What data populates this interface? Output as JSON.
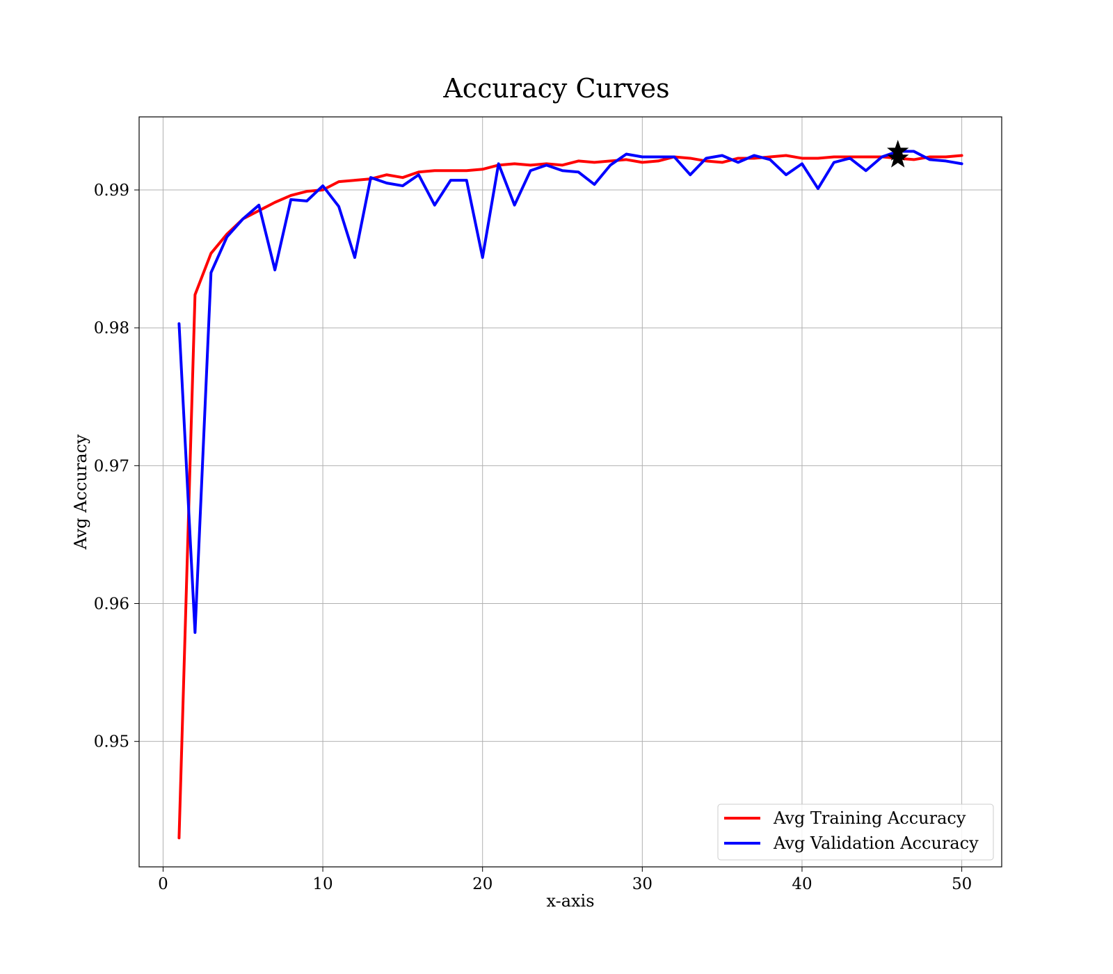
{
  "chart_data": {
    "type": "line",
    "title": "Accuracy Curves",
    "xlabel": "x-axis",
    "ylabel": "Avg Accuracy",
    "xlim": [
      -1.5,
      52.5
    ],
    "ylim": [
      0.9409,
      0.9953
    ],
    "x_ticks": [
      0,
      10,
      20,
      30,
      40,
      50
    ],
    "y_ticks": [
      0.95,
      0.96,
      0.97,
      0.98,
      0.99
    ],
    "x_tick_labels": [
      "0",
      "10",
      "20",
      "30",
      "40",
      "50"
    ],
    "y_tick_labels": [
      "0.95",
      "0.96",
      "0.97",
      "0.98",
      "0.99"
    ],
    "grid": true,
    "legend_position": "lower-right",
    "x": [
      1,
      2,
      3,
      4,
      5,
      6,
      7,
      8,
      9,
      10,
      11,
      12,
      13,
      14,
      15,
      16,
      17,
      18,
      19,
      20,
      21,
      22,
      23,
      24,
      25,
      26,
      27,
      28,
      29,
      30,
      31,
      32,
      33,
      34,
      35,
      36,
      37,
      38,
      39,
      40,
      41,
      42,
      43,
      44,
      45,
      46,
      47,
      48,
      49,
      50
    ],
    "series": [
      {
        "name": "Avg Training Accuracy",
        "color": "#ff0000",
        "values": [
          0.943,
          0.9824,
          0.9854,
          0.9868,
          0.9879,
          0.9885,
          0.9891,
          0.9896,
          0.9899,
          0.99,
          0.9906,
          0.9907,
          0.9908,
          0.9911,
          0.9909,
          0.9913,
          0.9914,
          0.9914,
          0.9914,
          0.9915,
          0.9918,
          0.9919,
          0.9918,
          0.9919,
          0.9918,
          0.9921,
          0.992,
          0.9921,
          0.9922,
          0.992,
          0.9921,
          0.9924,
          0.9923,
          0.9921,
          0.992,
          0.9923,
          0.9923,
          0.9924,
          0.9925,
          0.9923,
          0.9923,
          0.9924,
          0.9924,
          0.9924,
          0.9924,
          0.9923,
          0.9922,
          0.9924,
          0.9924,
          0.9925
        ]
      },
      {
        "name": "Avg Validation Accuracy",
        "color": "#0000ff",
        "values": [
          0.9803,
          0.9579,
          0.984,
          0.9866,
          0.9879,
          0.9889,
          0.9842,
          0.9893,
          0.9892,
          0.9903,
          0.9888,
          0.9851,
          0.9909,
          0.9905,
          0.9903,
          0.9911,
          0.9889,
          0.9907,
          0.9907,
          0.9851,
          0.9919,
          0.9889,
          0.9914,
          0.9918,
          0.9914,
          0.9913,
          0.9904,
          0.9918,
          0.9926,
          0.9924,
          0.9924,
          0.9924,
          0.9911,
          0.9923,
          0.9925,
          0.992,
          0.9925,
          0.9922,
          0.9911,
          0.9919,
          0.9901,
          0.992,
          0.9923,
          0.9914,
          0.9924,
          0.9928,
          0.9928,
          0.9922,
          0.9921,
          0.9919
        ]
      }
    ],
    "markers": [
      {
        "symbol": "star",
        "x": 46,
        "y": 0.9928,
        "color": "#000000"
      },
      {
        "symbol": "star",
        "x": 46,
        "y": 0.9923,
        "color": "#000000"
      }
    ]
  }
}
